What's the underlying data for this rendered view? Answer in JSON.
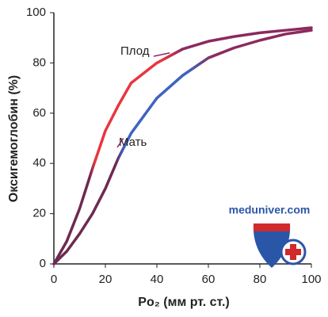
{
  "chart_data": {
    "type": "line",
    "x_label": "Po₂ (мм рт. ст.)",
    "y_label": "Оксигемоглобин (%)",
    "x": [
      0,
      5,
      10,
      15,
      20,
      25,
      30,
      40,
      50,
      60,
      70,
      80,
      90,
      100
    ],
    "series": [
      {
        "name": "Плод",
        "color": "#e8363f",
        "values": [
          0,
          9,
          22,
          38,
          53,
          63,
          72,
          80,
          85.5,
          88.6,
          90.5,
          92,
          93,
          94
        ]
      },
      {
        "name": "Мать",
        "color": "#3f63c0",
        "values": [
          0,
          5,
          12,
          20,
          30,
          42,
          52,
          66,
          75,
          82,
          86,
          89,
          91.5,
          93
        ]
      }
    ],
    "xlim": [
      0,
      100
    ],
    "xticks": [
      0,
      20,
      40,
      60,
      80,
      100
    ],
    "ylim": [
      0,
      100
    ],
    "yticks": [
      0,
      20,
      40,
      60,
      80,
      100
    ]
  },
  "watermark": "meduniver.com"
}
